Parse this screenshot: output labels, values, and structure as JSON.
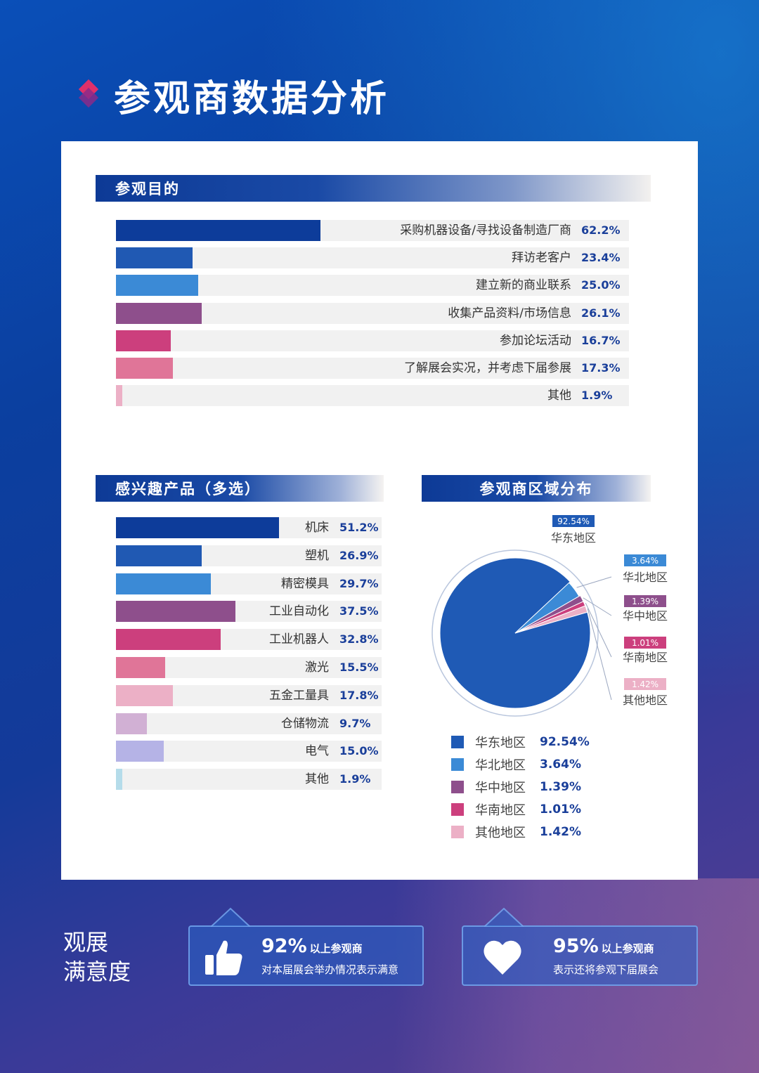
{
  "title": "参观商数据分析",
  "sections": {
    "purpose": "参观目的",
    "products": "感兴趣产品（多选）",
    "region": "参观商区域分布"
  },
  "colors": {
    "c1": "#0d3c9a",
    "c2": "#2059b3",
    "c3": "#3b8ad6",
    "c4": "#8e4f8c",
    "c5": "#cc3f7d",
    "c6": "#e07598",
    "c7": "#ecb0c6",
    "c8": "#d1b0d4",
    "c9": "#b5b3e6",
    "c10": "#b5dcea"
  },
  "chart_data": [
    {
      "type": "bar",
      "title": "参观目的",
      "categories": [
        "采购机器设备/寻找设备制造厂商",
        "拜访老客户",
        "建立新的商业联系",
        "收集产品资料/市场信息",
        "参加论坛活动",
        "了解展会实况，并考虑下届参展",
        "其他"
      ],
      "values": [
        62.2,
        23.4,
        25.0,
        26.1,
        16.7,
        17.3,
        1.9
      ],
      "labels": [
        "62.2%",
        "23.4%",
        "25.0%",
        "26.1%",
        "16.7%",
        "17.3%",
        "1.9%"
      ],
      "colors": [
        "#0d3c9a",
        "#2059b3",
        "#3b8ad6",
        "#8e4f8c",
        "#cc3f7d",
        "#e07598",
        "#ecb0c6"
      ],
      "unit": "%"
    },
    {
      "type": "bar",
      "title": "感兴趣产品（多选）",
      "categories": [
        "机床",
        "塑机",
        "精密模具",
        "工业自动化",
        "工业机器人",
        "激光",
        "五金工量具",
        "仓储物流",
        "电气",
        "其他"
      ],
      "values": [
        51.2,
        26.9,
        29.7,
        37.5,
        32.8,
        15.5,
        17.8,
        9.7,
        15.0,
        1.9
      ],
      "labels": [
        "51.2%",
        "26.9%",
        "29.7%",
        "37.5%",
        "32.8%",
        "15.5%",
        "17.8%",
        "9.7%",
        "15.0%",
        "1.9%"
      ],
      "colors": [
        "#0d3c9a",
        "#2059b3",
        "#3b8ad6",
        "#8e4f8c",
        "#cc3f7d",
        "#e07598",
        "#ecb0c6",
        "#d1b0d4",
        "#b5b3e6",
        "#b5dcea"
      ],
      "unit": "%"
    },
    {
      "type": "pie",
      "title": "参观商区域分布",
      "categories": [
        "华东地区",
        "华北地区",
        "华中地区",
        "华南地区",
        "其他地区"
      ],
      "values": [
        92.54,
        3.64,
        1.39,
        1.01,
        1.42
      ],
      "labels": [
        "92.54%",
        "3.64%",
        "1.39%",
        "1.01%",
        "1.42%"
      ],
      "colors": [
        "#1f5ab5",
        "#3b8ad6",
        "#8e4f8c",
        "#cc3f7d",
        "#ecb0c6"
      ]
    }
  ],
  "satisfaction": {
    "title_line1": "观展",
    "title_line2": "满意度",
    "items": [
      {
        "percent": "92%",
        "suffix": "以上参观商",
        "text": "对本届展会举办情况表示满意",
        "icon": "thumbs-up-icon"
      },
      {
        "percent": "95%",
        "suffix": "以上参观商",
        "text": "表示还将参观下届展会",
        "icon": "heart-icon"
      }
    ]
  }
}
